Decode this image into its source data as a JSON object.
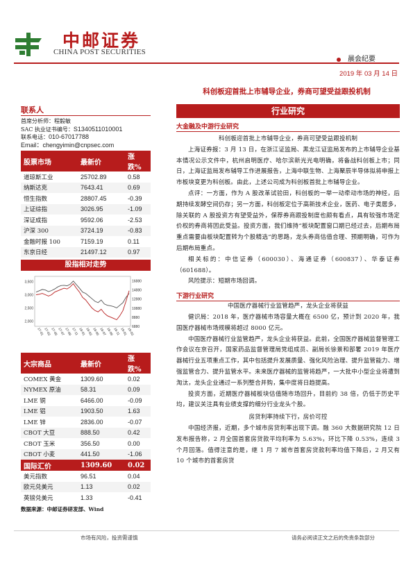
{
  "header": {
    "logo_cn": "中邮证券",
    "logo_en": "CHINA POST SECURITIES",
    "series": "晨会纪要",
    "date": "2019 年 03 月 14 日",
    "headline": "科创板迎首批上市辅导企业，券商可望受益跟投机制"
  },
  "contact": {
    "title": "联系人",
    "analyst_label": "首席分析师：",
    "analyst": "程毅敏",
    "sac_label": "SAC 执业证书编号：",
    "sac": "S1340511010001",
    "phone_label": "联系电话：",
    "phone": "010-67017788",
    "email_label": "Email：",
    "email": "chengyimin@cnpsec.com"
  },
  "stock_table": {
    "headers": [
      "股票市场",
      "最新价",
      "涨跌%"
    ],
    "rows": [
      {
        "name": "道琼斯工业",
        "price": "25702.89",
        "chg": "0.58"
      },
      {
        "name": "纳斯达克",
        "price": "7643.41",
        "chg": "0.69"
      },
      {
        "name": "恒生指数",
        "price": "28807.45",
        "chg": "-0.39"
      },
      {
        "name": "上证综指",
        "price": "3026.95",
        "chg": "-1.09"
      },
      {
        "name": "深证成指",
        "price": "9592.06",
        "chg": "-2.53"
      },
      {
        "name": "沪深 300",
        "price": "3724.19",
        "chg": "-0.83"
      },
      {
        "name": "金融时报 100",
        "price": "7159.19",
        "chg": "0.11"
      },
      {
        "name": "东京日经",
        "price": "21497.12",
        "chg": "0.97"
      }
    ]
  },
  "chart_title": "股指相对走势",
  "chart_data": {
    "type": "line",
    "left_axis_ticks": [
      "3,500",
      "3,000",
      "2,500",
      "2,000"
    ],
    "right_axis_ticks": [
      "16880",
      "14880",
      "12880",
      "10880",
      "8880",
      "6880"
    ],
    "x_ticks": [
      "17-01",
      "17-03",
      "17-05",
      "17-07",
      "17-09",
      "17-11",
      "18-01",
      "18-03",
      "18-05",
      "18-07",
      "18-09",
      "18-11",
      "19-01",
      "19-03"
    ],
    "ylim_left": [
      1800,
      3700
    ],
    "ylim_right": [
      6880,
      17880
    ],
    "series": [
      {
        "color": "#555555",
        "values": [
          3100,
          3150,
          3200,
          3180,
          3120,
          3160,
          3220,
          3300,
          3350,
          3360,
          3340,
          3400,
          3520,
          3380,
          3250,
          3100,
          3050,
          2950,
          2850,
          2750,
          2700,
          2800,
          2650,
          2600,
          2580,
          2550,
          2500,
          2600,
          2700,
          2900,
          3050
        ]
      },
      {
        "color": "#b71c1c",
        "values": [
          3000,
          3020,
          3050,
          3000,
          2950,
          3000,
          3100,
          3150,
          3200,
          3250,
          3220,
          3300,
          3420,
          3250,
          3100,
          2900,
          2800,
          2650,
          2500,
          2400,
          2350,
          2450,
          2300,
          2200,
          2150,
          2100,
          2050,
          2200,
          2400,
          2750,
          3150
        ]
      }
    ]
  },
  "commodity_table": {
    "headers": [
      "大宗商品",
      "最新价",
      "涨跌%"
    ],
    "rows": [
      {
        "name": "COMEX 黄金",
        "price": "1309.60",
        "chg": "0.02"
      },
      {
        "name": "NYMEX 原油",
        "price": "58.31",
        "chg": "0.09"
      },
      {
        "name": "LME 铜",
        "price": "6466.00",
        "chg": "-0.09"
      },
      {
        "name": "LME 铝",
        "price": "1903.50",
        "chg": "1.63"
      },
      {
        "name": "LME 锌",
        "price": "2836.00",
        "chg": "-0.07"
      },
      {
        "name": "CBOT 大豆",
        "price": "888.50",
        "chg": "0.42"
      },
      {
        "name": "CBOT 玉米",
        "price": "356.50",
        "chg": "0.00"
      },
      {
        "name": "CBOT 小麦",
        "price": "441.50",
        "chg": "-1.06"
      }
    ]
  },
  "fx_table": {
    "headers": [
      "国际汇价",
      "1309.60",
      "0.02"
    ],
    "rows": [
      {
        "name": "美元指数",
        "price": "96.51",
        "chg": "0.04"
      },
      {
        "name": "欧元兑美元",
        "price": "1.13",
        "chg": "0.02"
      },
      {
        "name": "英镑兑美元",
        "price": "1.33",
        "chg": "-0.41"
      }
    ]
  },
  "source_note": "数据来源：中邮证券研发部、Wind",
  "research": {
    "title": "行业研究",
    "sec1_title": "大金融及中游行业研究",
    "sec1_center": "科创板迎首批上市辅导企业，券商可望受益跟投机制",
    "sec1_p1": "上海证券报：3 月 13 日，在浙江证监局、黑龙江证监局发布的上市辅导企业基本情况公示文件中，杭州启明医疗、哈尔滨新光光电明确，将备战科创板上市；同日，上海证监局发布辅导工作进展报告，上海中联生物、上海聚辰半导体拟将申报上市板块变更为科创板。由此，上述公司成为科创板首批上市辅导企业。",
    "sec1_p2": "点评：一方面，作为 A 股改革试验田，科创板的一举一动牵动市场的神经，后期持续发酵空间仍存；另一方面，科创板定位于高新技术企业，医药、电子类居多，除关联的 A 股投资方有望受益外，保荐券商跟投制度也颇有看点，具有较强市场定价权的券商将因此受益。投资方面，我们维持“板块配置窗口期已经过去，后期布局重点需要由板块配置转为个股精选”的思路，龙头券商估值合理、预期明确，可作为后期布局重点。",
    "sec1_p3": "相关标的：中信证券（600030）、海通证券（600837）、华泰证券（601688）。",
    "sec1_p4": "风险提示：短期市场回调。",
    "sec2_title": "下游行业研究",
    "sec2_center": "中国医疗器械行业监管趋严，龙头企业将获益",
    "sec2_p1": "健识局：2018 年，医疗器械市场容量大概在 6500 亿，预计到 2020 年，我国医疗器械市场规模将超过 8000 亿元。",
    "sec2_p2": "中国医疗器械行业监管趋严，龙头企业将获益。此前，全国医疗器械监督管理工作会议在京召开，国家药品监督管理局党组成员、副局长徐景和部署 2019 年医疗器械行业五项重点工作，其中包括提升发展质量、强化风险治理、提升监管能力、增强监管合力、提升监管水平。未来医疗器械的监管将趋严，一大批中小型企业将遭到淘汰，龙头企业通过一系列整合并购，集中度将日趋提高。",
    "sec2_p3": "投资方面，近期医疗器械板块估值随市场回升，目前约 38 倍，仍低于历史平均，建议关注具有业绩支撑的细分行业龙头个股。",
    "sec3_center": "房贷利率持续下行，房价可控",
    "sec3_p1": "中国经济报，近期，多个城市房贷利率出现下调。融 360 大数据研究院 12 日发布报告称，2 月全国首套房贷款平均利率为 5.63%，环比下降 0.53%，连续 3 个月回落。值得注意的是，继 1 月 7 城市首套房贷款利率均值下降后，2 月又有 10 个城市的首套房贷"
  },
  "footer": {
    "left": "市场有风险，投资需谨慎",
    "right": "请务必阅读正文之后的免责条款部分"
  }
}
